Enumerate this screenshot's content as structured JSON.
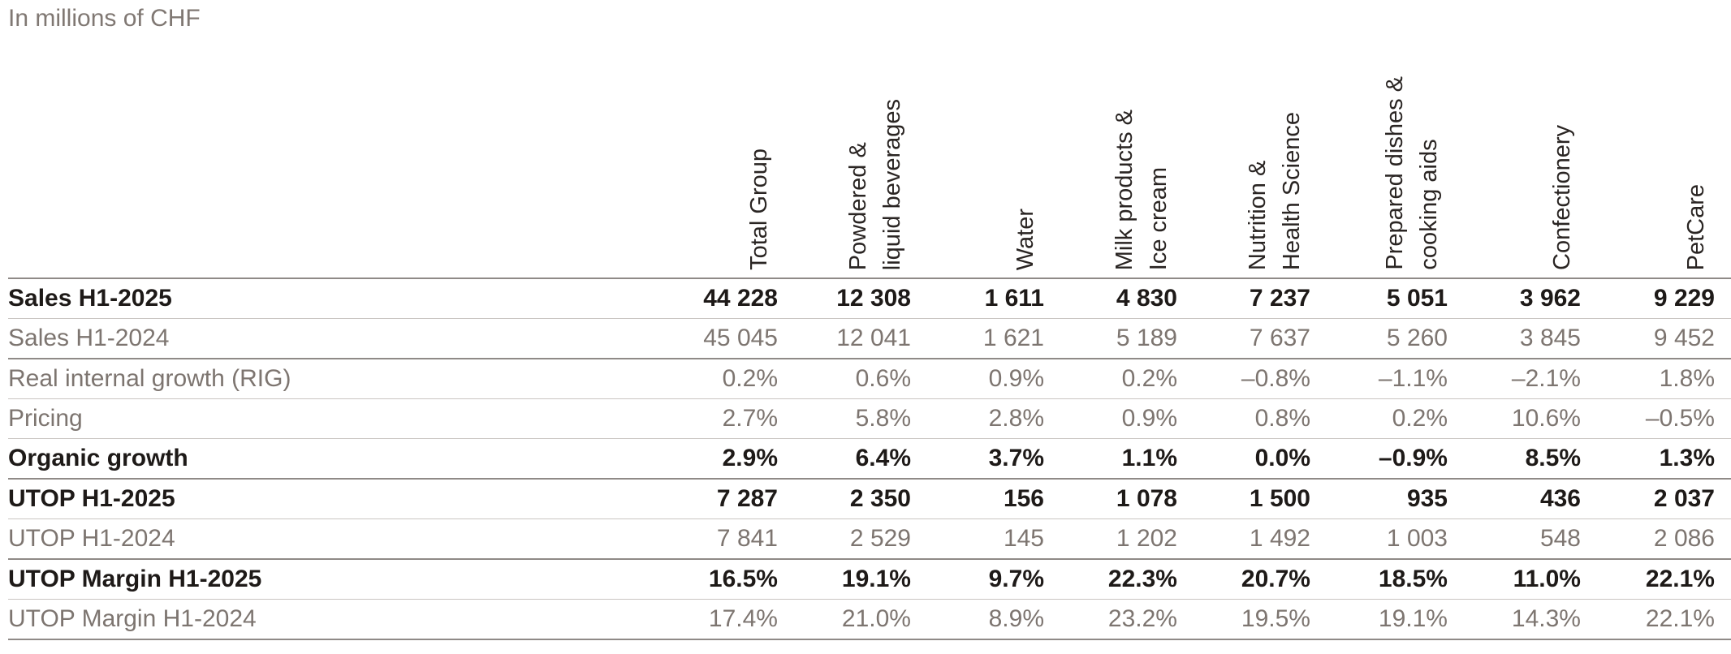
{
  "caption": "In millions of CHF",
  "columns": [
    {
      "lines": [
        "Total Group"
      ]
    },
    {
      "lines": [
        "Powdered &",
        "liquid beverages"
      ]
    },
    {
      "lines": [
        "Water"
      ]
    },
    {
      "lines": [
        "Milk products &",
        "Ice cream"
      ]
    },
    {
      "lines": [
        "Nutrition &",
        "Health Science"
      ]
    },
    {
      "lines": [
        "Prepared dishes &",
        "cooking aids"
      ]
    },
    {
      "lines": [
        "Confectionery"
      ]
    },
    {
      "lines": [
        "PetCare"
      ]
    }
  ],
  "rows": [
    {
      "label": "Sales H1-2025",
      "bold": true,
      "sep": false,
      "values": [
        "44 228",
        "12 308",
        "1 611",
        "4 830",
        "7 237",
        "5 051",
        "3 962",
        "9 229"
      ]
    },
    {
      "label": "Sales H1-2024",
      "bold": false,
      "sep": true,
      "values": [
        "45 045",
        "12 041",
        "1 621",
        "5 189",
        "7 637",
        "5 260",
        "3 845",
        "9 452"
      ]
    },
    {
      "label": "Real internal growth (RIG)",
      "bold": false,
      "sep": false,
      "values": [
        "0.2%",
        "0.6%",
        "0.9%",
        "0.2%",
        "–0.8%",
        "–1.1%",
        "–2.1%",
        "1.8%"
      ]
    },
    {
      "label": "Pricing",
      "bold": false,
      "sep": false,
      "values": [
        "2.7%",
        "5.8%",
        "2.8%",
        "0.9%",
        "0.8%",
        "0.2%",
        "10.6%",
        "–0.5%"
      ]
    },
    {
      "label": "Organic growth",
      "bold": true,
      "sep": true,
      "values": [
        "2.9%",
        "6.4%",
        "3.7%",
        "1.1%",
        "0.0%",
        "–0.9%",
        "8.5%",
        "1.3%"
      ]
    },
    {
      "label": "UTOP H1-2025",
      "bold": true,
      "sep": false,
      "values": [
        "7 287",
        "2 350",
        "156",
        "1 078",
        "1 500",
        "935",
        "436",
        "2 037"
      ]
    },
    {
      "label": "UTOP H1-2024",
      "bold": false,
      "sep": true,
      "values": [
        "7 841",
        "2 529",
        "145",
        "1 202",
        "1 492",
        "1 003",
        "548",
        "2 086"
      ]
    },
    {
      "label": "UTOP Margin H1-2025",
      "bold": true,
      "sep": false,
      "values": [
        "16.5%",
        "19.1%",
        "9.7%",
        "22.3%",
        "20.7%",
        "18.5%",
        "11.0%",
        "22.1%"
      ]
    },
    {
      "label": "UTOP Margin H1-2024",
      "bold": false,
      "sep": true,
      "values": [
        "17.4%",
        "21.0%",
        "8.9%",
        "23.2%",
        "19.5%",
        "19.1%",
        "14.3%",
        "22.1%"
      ]
    }
  ]
}
